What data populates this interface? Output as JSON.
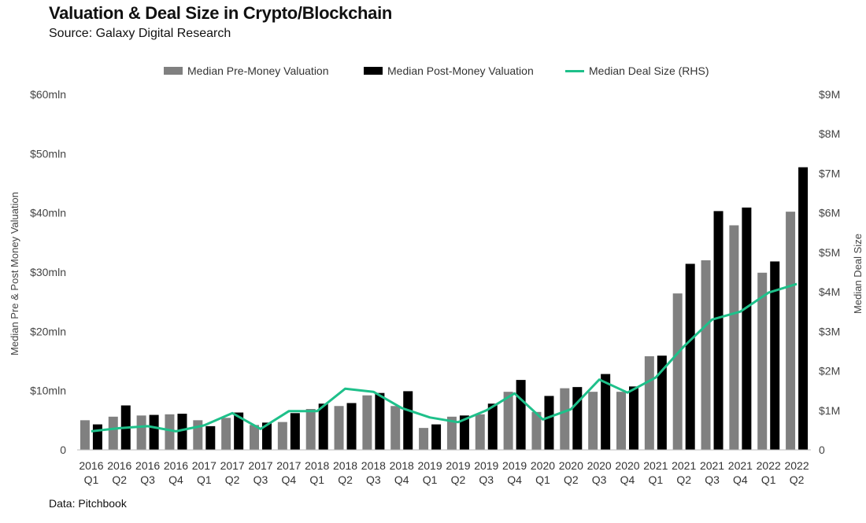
{
  "header": {
    "title": "Valuation & Deal Size in Crypto/Blockchain",
    "subtitle": "Source: Galaxy Digital Research"
  },
  "footer": {
    "note": "Data: Pitchbook"
  },
  "colors": {
    "pre": "#808080",
    "post": "#000000",
    "deal": "#1ec08a",
    "axis": "#555555"
  },
  "chart_data": {
    "type": "bar",
    "title": "Valuation & Deal Size in Crypto/Blockchain",
    "ylabel": "Median Pre & Post Money Valuation",
    "y2label": "Median Deal Size",
    "ylim": [
      0,
      60
    ],
    "y2lim": [
      0,
      9
    ],
    "yticks": [
      "0",
      "$10mln",
      "$20mln",
      "$30mln",
      "$40mln",
      "$50mln",
      "$60mln"
    ],
    "y2ticks": [
      "0",
      "$1M",
      "$2M",
      "$3M",
      "$4M",
      "$5M",
      "$6M",
      "$7M",
      "$8M",
      "$9M"
    ],
    "categories": [
      [
        "2016",
        "Q1"
      ],
      [
        "2016",
        "Q2"
      ],
      [
        "2016",
        "Q3"
      ],
      [
        "2016",
        "Q4"
      ],
      [
        "2017",
        "Q1"
      ],
      [
        "2017",
        "Q2"
      ],
      [
        "2017",
        "Q3"
      ],
      [
        "2017",
        "Q4"
      ],
      [
        "2018",
        "Q1"
      ],
      [
        "2018",
        "Q2"
      ],
      [
        "2018",
        "Q3"
      ],
      [
        "2018",
        "Q4"
      ],
      [
        "2019",
        "Q1"
      ],
      [
        "2019",
        "Q2"
      ],
      [
        "2019",
        "Q3"
      ],
      [
        "2019",
        "Q4"
      ],
      [
        "2020",
        "Q1"
      ],
      [
        "2020",
        "Q2"
      ],
      [
        "2020",
        "Q3"
      ],
      [
        "2020",
        "Q4"
      ],
      [
        "2021",
        "Q1"
      ],
      [
        "2021",
        "Q2"
      ],
      [
        "2021",
        "Q3"
      ],
      [
        "2021",
        "Q4"
      ],
      [
        "2022",
        "Q1"
      ],
      [
        "2022",
        "Q2"
      ]
    ],
    "series": [
      {
        "name": "Median Pre-Money Valuation",
        "type": "bar",
        "axis": "left",
        "values": [
          5.0,
          5.6,
          5.8,
          6.0,
          5.0,
          5.4,
          4.2,
          4.7,
          6.9,
          7.4,
          9.2,
          7.4,
          3.7,
          5.6,
          6.0,
          9.8,
          6.4,
          10.4,
          9.8,
          9.8,
          15.8,
          26.4,
          32.0,
          37.9,
          29.9,
          40.2
        ]
      },
      {
        "name": "Median Post-Money Valuation",
        "type": "bar",
        "axis": "left",
        "values": [
          4.3,
          7.5,
          5.9,
          6.1,
          4.0,
          6.3,
          4.6,
          6.2,
          7.8,
          7.9,
          9.6,
          9.9,
          4.3,
          5.8,
          7.8,
          11.8,
          9.1,
          10.6,
          12.8,
          10.7,
          15.9,
          31.4,
          40.3,
          40.9,
          31.8,
          47.7
        ]
      },
      {
        "name": "Median Deal Size (RHS)",
        "type": "line",
        "axis": "right",
        "values": [
          0.47,
          0.55,
          0.6,
          0.47,
          0.62,
          0.93,
          0.53,
          0.98,
          0.98,
          1.55,
          1.47,
          1.06,
          0.82,
          0.7,
          1.0,
          1.43,
          0.77,
          1.03,
          1.78,
          1.45,
          1.83,
          2.62,
          3.3,
          3.5,
          3.98,
          4.2
        ]
      }
    ],
    "legend": {
      "position": "top-center",
      "entries": [
        "Median Pre-Money Valuation",
        "Median Post-Money Valuation",
        "Median Deal Size (RHS)"
      ]
    }
  }
}
